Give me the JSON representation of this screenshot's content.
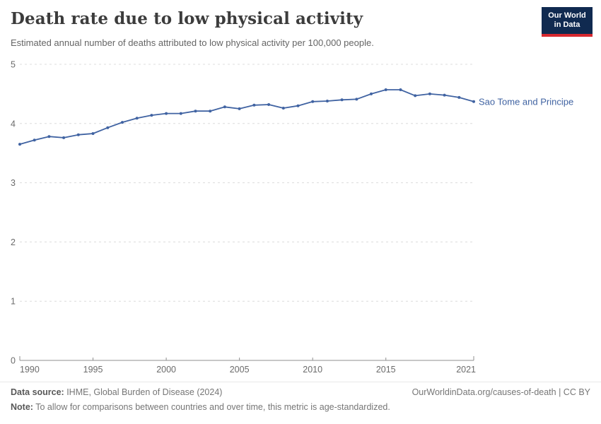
{
  "header": {
    "title": "Death rate due to low physical activity",
    "subtitle": "Estimated annual number of deaths attributed to low physical activity per 100,000 people.",
    "logo": {
      "line1": "Our World",
      "line2": "in Data",
      "bg_color": "#102a50",
      "accent_color": "#d7282f"
    }
  },
  "chart_data": {
    "type": "line",
    "title": "Death rate due to low physical activity",
    "subtitle": "Estimated annual number of deaths attributed to low physical activity per 100,000 people.",
    "series_name": "Sao Tome and Principe",
    "x": [
      1990,
      1991,
      1992,
      1993,
      1994,
      1995,
      1996,
      1997,
      1998,
      1999,
      2000,
      2001,
      2002,
      2003,
      2004,
      2005,
      2006,
      2007,
      2008,
      2009,
      2010,
      2011,
      2012,
      2013,
      2014,
      2015,
      2016,
      2017,
      2018,
      2019,
      2020,
      2021
    ],
    "values": [
      3.65,
      3.72,
      3.78,
      3.76,
      3.81,
      3.83,
      3.93,
      4.02,
      4.09,
      4.14,
      4.17,
      4.17,
      4.21,
      4.21,
      4.28,
      4.25,
      4.31,
      4.32,
      4.26,
      4.3,
      4.37,
      4.38,
      4.4,
      4.41,
      4.5,
      4.57,
      4.57,
      4.47,
      4.5,
      4.48,
      4.44,
      4.37
    ],
    "xlim": [
      1990,
      2021
    ],
    "ylim": [
      0,
      5
    ],
    "x_ticks": [
      1990,
      1995,
      2000,
      2005,
      2010,
      2015,
      2021
    ],
    "y_ticks": [
      0,
      1,
      2,
      3,
      4,
      5
    ],
    "grid": true,
    "legend_position": "end-of-line",
    "xlabel": "",
    "ylabel": "",
    "line_color": "#4063a2",
    "grid_color": "#dcdcdc",
    "axis_color": "#8f8f8f",
    "tick_label_color": "#6b6b6b"
  },
  "footer": {
    "data_source_label": "Data source:",
    "data_source_value": " IHME, Global Burden of Disease (2024)",
    "link": "OurWorldinData.org/causes-of-death | CC BY",
    "note_label": "Note:",
    "note_value": " To allow for comparisons between countries and over time, this metric is age-standardized."
  }
}
